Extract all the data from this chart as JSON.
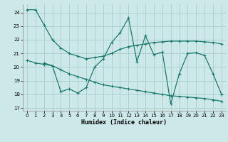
{
  "bg_color": "#cce8e8",
  "grid_color": "#aacccc",
  "line_color": "#1a7a6e",
  "xlabel": "Humidex (Indice chaleur)",
  "xlim": [
    -0.5,
    23.5
  ],
  "ylim": [
    16.8,
    24.6
  ],
  "yticks": [
    17,
    18,
    19,
    20,
    21,
    22,
    23,
    24
  ],
  "xticks": [
    0,
    1,
    2,
    3,
    4,
    5,
    6,
    7,
    8,
    9,
    10,
    11,
    12,
    13,
    14,
    15,
    16,
    17,
    18,
    19,
    20,
    21,
    22,
    23
  ],
  "line1_x": [
    0,
    1,
    2,
    3,
    4,
    5,
    6,
    7,
    8,
    9,
    10,
    11,
    12,
    13,
    14,
    15,
    16,
    17,
    18,
    19,
    20,
    21,
    22,
    23
  ],
  "line1_y": [
    24.2,
    24.2,
    23.1,
    22.0,
    21.4,
    21.0,
    20.8,
    20.6,
    20.7,
    20.8,
    21.0,
    21.3,
    21.5,
    21.6,
    21.7,
    21.8,
    21.85,
    21.9,
    21.9,
    21.9,
    21.9,
    21.85,
    21.8,
    21.7
  ],
  "line2_x": [
    0,
    1,
    2,
    3,
    4,
    5,
    6,
    7,
    8,
    9,
    10,
    11,
    12,
    13,
    14,
    15,
    16,
    17,
    18,
    19,
    20,
    21,
    22,
    23
  ],
  "line2_y": [
    20.5,
    20.3,
    20.2,
    20.1,
    19.8,
    19.5,
    19.3,
    19.1,
    18.9,
    18.7,
    18.6,
    18.5,
    18.4,
    18.3,
    18.2,
    18.1,
    18.0,
    17.9,
    17.85,
    17.8,
    17.75,
    17.7,
    17.6,
    17.5
  ],
  "line3_x": [
    2,
    3,
    4,
    5,
    6,
    7,
    8,
    9,
    10,
    11,
    12,
    13,
    14,
    15,
    16,
    17,
    18,
    19,
    20,
    21,
    22,
    23
  ],
  "line3_y": [
    20.3,
    20.1,
    18.2,
    18.4,
    18.1,
    18.5,
    20.0,
    20.6,
    21.8,
    22.5,
    23.6,
    20.4,
    22.3,
    20.9,
    21.1,
    17.3,
    19.5,
    21.0,
    21.05,
    20.85,
    19.5,
    18.0
  ]
}
